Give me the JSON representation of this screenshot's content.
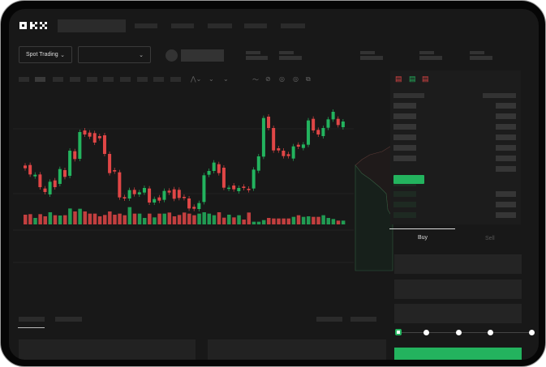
{
  "header": {
    "logo": "OKX",
    "search_placeholder": "",
    "nav_items": [
      "",
      "",
      "",
      "",
      ""
    ]
  },
  "market_bar": {
    "mode_selector": "Spot Trading",
    "pair_selector": ""
  },
  "trade_form": {
    "tabs": [
      "Buy",
      "Sell"
    ],
    "active_tab": "Buy",
    "slider_percent": 0,
    "slider_stops": 5
  },
  "colors": {
    "up": "#23b35e",
    "down": "#e04646",
    "background": "#181818",
    "accent": "#23b35e"
  },
  "chart_data": {
    "type": "candlestick",
    "candles": [
      [
        250,
        260,
        "d"
      ],
      [
        248,
        283,
        "d"
      ],
      [
        290,
        284,
        "u"
      ],
      [
        283,
        330,
        "d"
      ],
      [
        335,
        348,
        "d"
      ],
      [
        357,
        310,
        "u"
      ],
      [
        305,
        330,
        "d"
      ],
      [
        318,
        263,
        "u"
      ],
      [
        267,
        292,
        "d"
      ],
      [
        288,
        195,
        "u"
      ],
      [
        197,
        226,
        "d"
      ],
      [
        225,
        126,
        "u"
      ],
      [
        120,
        135,
        "d"
      ],
      [
        128,
        143,
        "d"
      ],
      [
        130,
        165,
        "d"
      ],
      [
        141,
        149,
        "d"
      ],
      [
        138,
        207,
        "d"
      ],
      [
        207,
        278,
        "d"
      ],
      [
        267,
        272,
        "d"
      ],
      [
        275,
        368,
        "d"
      ],
      [
        367,
        372,
        "d"
      ],
      [
        372,
        341,
        "u"
      ],
      [
        340,
        356,
        "d"
      ],
      [
        357,
        349,
        "u"
      ],
      [
        350,
        333,
        "u"
      ],
      [
        335,
        387,
        "d"
      ],
      [
        387,
        374,
        "u"
      ],
      [
        368,
        380,
        "d"
      ],
      [
        377,
        344,
        "u"
      ],
      [
        343,
        350,
        "d"
      ],
      [
        338,
        373,
        "d"
      ],
      [
        340,
        370,
        "d"
      ],
      [
        366,
        370,
        "d"
      ],
      [
        372,
        409,
        "d"
      ],
      [
        403,
        410,
        "d"
      ],
      [
        411,
        389,
        "u"
      ],
      [
        385,
        286,
        "u"
      ],
      [
        284,
        270,
        "u"
      ],
      [
        270,
        239,
        "u"
      ],
      [
        245,
        278,
        "d"
      ],
      [
        258,
        332,
        "d"
      ],
      [
        336,
        332,
        "u"
      ],
      [
        324,
        338,
        "d"
      ],
      [
        345,
        333,
        "u"
      ],
      [
        328,
        333,
        "d"
      ],
      [
        336,
        341,
        "d"
      ],
      [
        335,
        265,
        "u"
      ],
      [
        269,
        216,
        "u"
      ],
      [
        217,
        74,
        "u"
      ],
      [
        69,
        111,
        "d"
      ],
      [
        111,
        194,
        "d"
      ],
      [
        186,
        194,
        "d"
      ],
      [
        195,
        215,
        "d"
      ],
      [
        208,
        215,
        "d"
      ],
      [
        224,
        179,
        "u"
      ],
      [
        173,
        180,
        "d"
      ],
      [
        185,
        172,
        "u"
      ],
      [
        173,
        83,
        "u"
      ],
      [
        77,
        120,
        "d"
      ],
      [
        118,
        135,
        "d"
      ],
      [
        141,
        111,
        "u"
      ],
      [
        110,
        79,
        "u"
      ],
      [
        79,
        51,
        "u"
      ],
      [
        77,
        100,
        "d"
      ],
      [
        108,
        87,
        "u"
      ]
    ],
    "volumes": [
      36,
      38,
      24,
      38,
      30,
      45,
      34,
      33,
      34,
      59,
      48,
      58,
      48,
      40,
      40,
      30,
      35,
      48,
      36,
      40,
      34,
      64,
      40,
      40,
      24,
      40,
      26,
      40,
      40,
      44,
      30,
      35,
      44,
      40,
      34,
      40,
      45,
      40,
      34,
      45,
      25,
      36,
      26,
      34,
      18,
      44,
      10,
      10,
      16,
      24,
      22,
      22,
      22,
      22,
      28,
      34,
      28,
      30,
      28,
      28,
      34,
      24,
      20,
      14,
      14
    ]
  }
}
